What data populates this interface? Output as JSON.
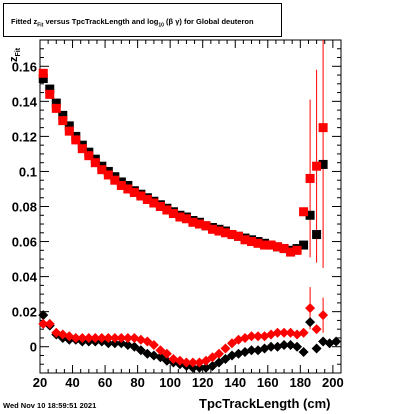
{
  "title": "Fitted  z_Fit  versus TpcTrackLength and log10(β γ) for Global deuteron",
  "title_parts": {
    "pre": "Fitted  z",
    "sub1": "Fit",
    "mid": "  versus TpcTrackLength and log",
    "sub2": "10",
    "post": " (β  γ) for Global deuteron"
  },
  "footer_date": "Wed Nov 10 18:59:51 2021",
  "colors": {
    "series_black": "#000000",
    "series_red": "#ff0000",
    "axis": "#000000"
  },
  "chart_data": {
    "type": "scatter",
    "xlabel": "TpcTrackLength (cm)",
    "ylabel_parts": {
      "main": "z",
      "sub": "Fit"
    },
    "xlim": [
      20,
      205
    ],
    "ylim": [
      -0.015,
      0.175
    ],
    "x_ticks": [
      20,
      40,
      60,
      80,
      100,
      120,
      140,
      160,
      180,
      200
    ],
    "y_ticks": [
      0,
      0.02,
      0.04,
      0.06,
      0.08,
      0.1,
      0.12,
      0.14,
      0.16
    ],
    "y_tick_labels": [
      "0",
      "0.02",
      "0.04",
      "0.06",
      "0.08",
      "0.1",
      "0.12",
      "0.14",
      "0.16"
    ],
    "series": [
      {
        "kind": "square",
        "color": "black",
        "points": [
          [
            22,
            0.153
          ],
          [
            26,
            0.147
          ],
          [
            30,
            0.139
          ],
          [
            34,
            0.132
          ],
          [
            38,
            0.126
          ],
          [
            42,
            0.12
          ],
          [
            46,
            0.115
          ],
          [
            50,
            0.111
          ],
          [
            54,
            0.107
          ],
          [
            58,
            0.103
          ],
          [
            62,
            0.1
          ],
          [
            66,
            0.097
          ],
          [
            70,
            0.094
          ],
          [
            74,
            0.092
          ],
          [
            78,
            0.089
          ],
          [
            82,
            0.087
          ],
          [
            86,
            0.085
          ],
          [
            90,
            0.083
          ],
          [
            94,
            0.081
          ],
          [
            98,
            0.079
          ],
          [
            102,
            0.077
          ],
          [
            106,
            0.075
          ],
          [
            110,
            0.074
          ],
          [
            114,
            0.072
          ],
          [
            118,
            0.071
          ],
          [
            122,
            0.069
          ],
          [
            126,
            0.068
          ],
          [
            130,
            0.067
          ],
          [
            134,
            0.066
          ],
          [
            138,
            0.064
          ],
          [
            142,
            0.063
          ],
          [
            146,
            0.062
          ],
          [
            150,
            0.061
          ],
          [
            154,
            0.06
          ],
          [
            158,
            0.059
          ],
          [
            162,
            0.058
          ],
          [
            166,
            0.057
          ],
          [
            170,
            0.056
          ],
          [
            174,
            0.055
          ],
          [
            178,
            0.056
          ],
          [
            182,
            0.058
          ],
          [
            186,
            0.075
          ],
          [
            190,
            0.064
          ],
          [
            194,
            0.104
          ]
        ]
      },
      {
        "kind": "square",
        "color": "red",
        "points": [
          [
            22,
            0.156
          ],
          [
            26,
            0.144
          ],
          [
            30,
            0.136
          ],
          [
            34,
            0.129
          ],
          [
            38,
            0.123
          ],
          [
            42,
            0.118
          ],
          [
            46,
            0.113
          ],
          [
            50,
            0.109
          ],
          [
            54,
            0.105
          ],
          [
            58,
            0.101
          ],
          [
            62,
            0.098
          ],
          [
            66,
            0.095
          ],
          [
            70,
            0.092
          ],
          [
            74,
            0.09
          ],
          [
            78,
            0.088
          ],
          [
            82,
            0.086
          ],
          [
            86,
            0.084
          ],
          [
            90,
            0.082
          ],
          [
            94,
            0.08
          ],
          [
            98,
            0.078
          ],
          [
            102,
            0.076
          ],
          [
            106,
            0.074
          ],
          [
            110,
            0.073
          ],
          [
            114,
            0.071
          ],
          [
            118,
            0.07
          ],
          [
            122,
            0.069
          ],
          [
            126,
            0.067
          ],
          [
            130,
            0.066
          ],
          [
            134,
            0.065
          ],
          [
            138,
            0.064
          ],
          [
            142,
            0.063
          ],
          [
            146,
            0.061
          ],
          [
            150,
            0.06
          ],
          [
            154,
            0.059
          ],
          [
            158,
            0.058
          ],
          [
            162,
            0.058
          ],
          [
            166,
            0.057
          ],
          [
            170,
            0.056
          ],
          [
            174,
            0.054
          ],
          [
            178,
            0.055
          ],
          [
            182,
            0.077
          ],
          [
            186,
            0.096
          ],
          [
            190,
            0.103
          ],
          [
            194,
            0.125
          ]
        ],
        "error_bars": [
          [
            186,
            0.045
          ],
          [
            190,
            0.055
          ],
          [
            194,
            0.08
          ]
        ]
      },
      {
        "kind": "diamond",
        "color": "black",
        "points": [
          [
            22,
            0.018
          ],
          [
            26,
            0.012
          ],
          [
            30,
            0.007
          ],
          [
            34,
            0.005
          ],
          [
            38,
            0.004
          ],
          [
            42,
            0.004
          ],
          [
            46,
            0.003
          ],
          [
            50,
            0.003
          ],
          [
            54,
            0.003
          ],
          [
            58,
            0.003
          ],
          [
            62,
            0.002
          ],
          [
            66,
            0.002
          ],
          [
            70,
            0.002
          ],
          [
            74,
            0.001
          ],
          [
            78,
            0.0
          ],
          [
            82,
            -0.002
          ],
          [
            86,
            -0.004
          ],
          [
            90,
            -0.005
          ],
          [
            94,
            -0.006
          ],
          [
            98,
            -0.008
          ],
          [
            102,
            -0.009
          ],
          [
            106,
            -0.01
          ],
          [
            110,
            -0.011
          ],
          [
            114,
            -0.012
          ],
          [
            118,
            -0.012
          ],
          [
            122,
            -0.012
          ],
          [
            126,
            -0.011
          ],
          [
            130,
            -0.009
          ],
          [
            134,
            -0.007
          ],
          [
            138,
            -0.005
          ],
          [
            142,
            -0.004
          ],
          [
            146,
            -0.003
          ],
          [
            150,
            -0.002
          ],
          [
            154,
            -0.002
          ],
          [
            158,
            -0.001
          ],
          [
            162,
            0.0
          ],
          [
            166,
            0.0
          ],
          [
            170,
            0.001
          ],
          [
            174,
            0.001
          ],
          [
            178,
            0.0
          ],
          [
            182,
            -0.003
          ],
          [
            186,
            0.014
          ],
          [
            190,
            -0.001
          ],
          [
            194,
            0.003
          ],
          [
            198,
            0.002
          ],
          [
            202,
            0.003
          ]
        ]
      },
      {
        "kind": "diamond",
        "color": "red",
        "points": [
          [
            22,
            0.013
          ],
          [
            26,
            0.013
          ],
          [
            30,
            0.008
          ],
          [
            34,
            0.007
          ],
          [
            38,
            0.006
          ],
          [
            42,
            0.005
          ],
          [
            46,
            0.005
          ],
          [
            50,
            0.005
          ],
          [
            54,
            0.005
          ],
          [
            58,
            0.005
          ],
          [
            62,
            0.005
          ],
          [
            66,
            0.005
          ],
          [
            70,
            0.005
          ],
          [
            74,
            0.005
          ],
          [
            78,
            0.005
          ],
          [
            82,
            0.004
          ],
          [
            86,
            0.003
          ],
          [
            90,
            0.001
          ],
          [
            94,
            -0.002
          ],
          [
            98,
            -0.004
          ],
          [
            102,
            -0.007
          ],
          [
            106,
            -0.008
          ],
          [
            110,
            -0.009
          ],
          [
            114,
            -0.009
          ],
          [
            118,
            -0.009
          ],
          [
            122,
            -0.008
          ],
          [
            126,
            -0.006
          ],
          [
            130,
            -0.004
          ],
          [
            134,
            -0.001
          ],
          [
            138,
            0.002
          ],
          [
            142,
            0.004
          ],
          [
            146,
            0.005
          ],
          [
            150,
            0.006
          ],
          [
            154,
            0.006
          ],
          [
            158,
            0.006
          ],
          [
            162,
            0.007
          ],
          [
            166,
            0.008
          ],
          [
            170,
            0.008
          ],
          [
            174,
            0.008
          ],
          [
            178,
            0.007
          ],
          [
            182,
            0.008
          ],
          [
            186,
            0.022
          ],
          [
            190,
            0.01
          ],
          [
            194,
            0.018
          ]
        ],
        "error_bars": [
          [
            186,
            0.012
          ],
          [
            194,
            0.01
          ]
        ]
      }
    ]
  }
}
